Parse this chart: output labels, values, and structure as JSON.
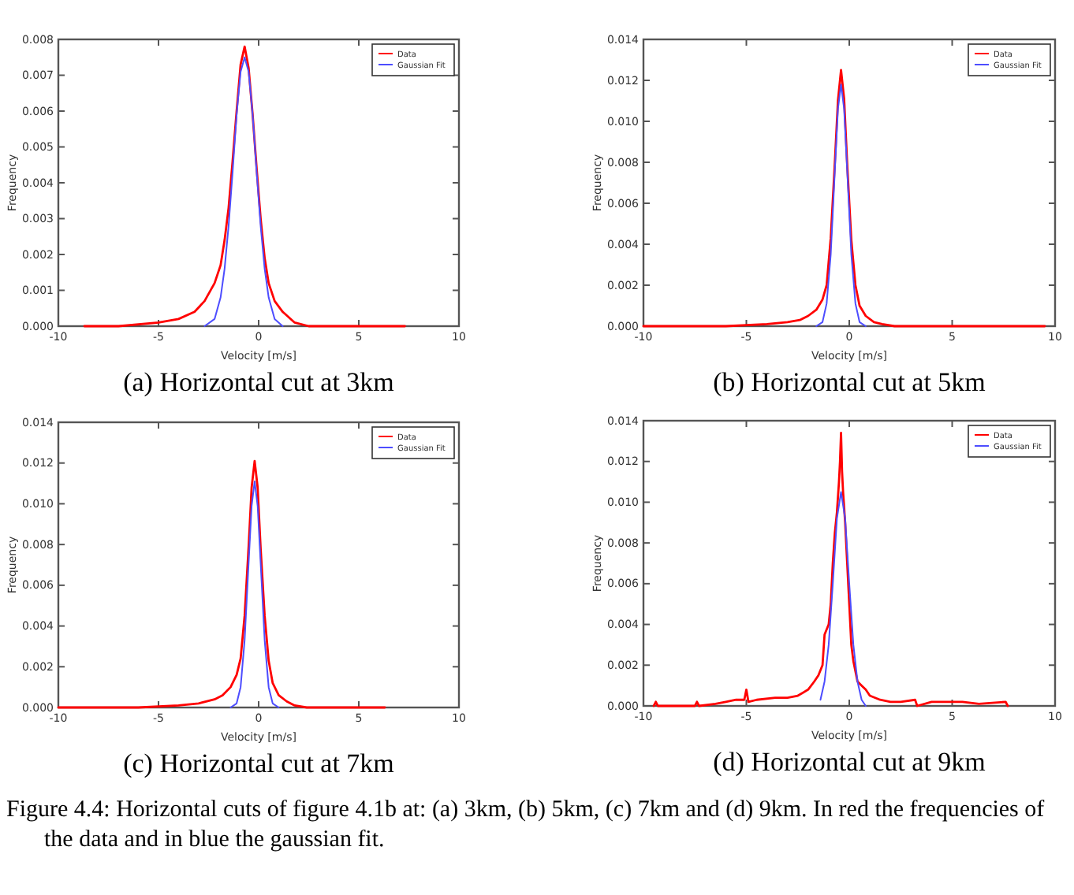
{
  "chart_data": [
    {
      "type": "line",
      "title": "(a) Horizontal cut at 3km",
      "xlabel": "Velocity [m/s]",
      "ylabel": "Frequency",
      "xlim": [
        -10,
        10
      ],
      "xticks": [
        -10,
        -5,
        0,
        5,
        10
      ],
      "ylim": [
        0,
        0.008
      ],
      "yticks": [
        {
          "value": 0,
          "label": "0.000"
        },
        {
          "value": 0.001,
          "label": "0.001"
        },
        {
          "value": 0.002,
          "label": "0.002"
        },
        {
          "value": 0.003,
          "label": "0.003"
        },
        {
          "value": 0.004,
          "label": "0.004"
        },
        {
          "value": 0.005,
          "label": "0.005"
        },
        {
          "value": 0.006,
          "label": "0.006"
        },
        {
          "value": 0.007,
          "label": "0.007"
        },
        {
          "value": 0.008,
          "label": "0.008"
        }
      ],
      "legend": "top right",
      "grid": false,
      "x": [
        -8.7,
        -7,
        -5,
        -4,
        -3.2,
        -2.7,
        -2.2,
        -1.9,
        -1.7,
        -1.5,
        -1.3,
        -1.1,
        -0.9,
        -0.7,
        -0.5,
        -0.3,
        -0.1,
        0.1,
        0.3,
        0.5,
        0.8,
        1.2,
        1.8,
        2.5,
        4,
        6,
        7.3
      ],
      "series": [
        {
          "name": "Data",
          "color": "#ff0000",
          "values": [
            0,
            0,
            0.0001,
            0.0002,
            0.0004,
            0.0007,
            0.0012,
            0.0017,
            0.0024,
            0.0033,
            0.0046,
            0.006,
            0.0073,
            0.0078,
            0.0072,
            0.0059,
            0.0044,
            0.003,
            0.0019,
            0.0012,
            0.0007,
            0.0004,
            0.0001,
            0,
            0,
            0,
            0
          ]
        },
        {
          "name": "Gaussian Fit",
          "color": "#4d4dff",
          "x": [
            -2.7,
            -2.2,
            -1.9,
            -1.7,
            -1.5,
            -1.3,
            -1.1,
            -0.9,
            -0.7,
            -0.5,
            -0.3,
            -0.1,
            0.1,
            0.3,
            0.5,
            0.8,
            1.2
          ],
          "values": [
            0,
            0.0002,
            0.0008,
            0.0016,
            0.0028,
            0.0043,
            0.0059,
            0.0071,
            0.0075,
            0.0071,
            0.0059,
            0.0043,
            0.0028,
            0.0016,
            0.0008,
            0.0002,
            0
          ]
        }
      ]
    },
    {
      "type": "line",
      "title": "(b) Horizontal cut at 5km",
      "xlabel": "Velocity [m/s]",
      "ylabel": "Frequency",
      "xlim": [
        -10,
        10
      ],
      "xticks": [
        -10,
        -5,
        0,
        5,
        10
      ],
      "ylim": [
        0,
        0.014
      ],
      "yticks": [
        {
          "value": 0,
          "label": "0.000"
        },
        {
          "value": 0.002,
          "label": "0.002"
        },
        {
          "value": 0.004,
          "label": "0.004"
        },
        {
          "value": 0.006,
          "label": "0.006"
        },
        {
          "value": 0.008,
          "label": "0.008"
        },
        {
          "value": 0.01,
          "label": "0.010"
        },
        {
          "value": 0.012,
          "label": "0.012"
        },
        {
          "value": 0.014,
          "label": "0.014"
        }
      ],
      "legend": "top right",
      "grid": false,
      "x": [
        -10,
        -6,
        -4,
        -3,
        -2.4,
        -2,
        -1.6,
        -1.3,
        -1.1,
        -0.9,
        -0.7,
        -0.55,
        -0.4,
        -0.25,
        -0.1,
        0.1,
        0.3,
        0.5,
        0.8,
        1.2,
        1.6,
        2.2,
        3,
        5,
        9.5
      ],
      "series": [
        {
          "name": "Data",
          "color": "#ff0000",
          "values": [
            0,
            0,
            0.0001,
            0.0002,
            0.0003,
            0.0005,
            0.0008,
            0.0013,
            0.002,
            0.0043,
            0.008,
            0.011,
            0.0125,
            0.0111,
            0.0079,
            0.0042,
            0.002,
            0.001,
            0.0005,
            0.0002,
            0.0001,
            0,
            0,
            0,
            0
          ]
        },
        {
          "name": "Gaussian Fit",
          "color": "#4d4dff",
          "x": [
            -1.6,
            -1.3,
            -1.1,
            -0.9,
            -0.7,
            -0.55,
            -0.4,
            -0.25,
            -0.1,
            0.1,
            0.3,
            0.5,
            0.8
          ],
          "values": [
            0,
            0.0002,
            0.0011,
            0.0035,
            0.0076,
            0.0106,
            0.0118,
            0.0106,
            0.0076,
            0.0035,
            0.0011,
            0.0002,
            0
          ]
        }
      ]
    },
    {
      "type": "line",
      "title": "(c) Horizontal cut at 7km",
      "xlabel": "Velocity [m/s]",
      "ylabel": "Frequency",
      "xlim": [
        -10,
        10
      ],
      "xticks": [
        -10,
        -5,
        0,
        5,
        10
      ],
      "ylim": [
        0,
        0.014
      ],
      "yticks": [
        {
          "value": 0,
          "label": "0.000"
        },
        {
          "value": 0.002,
          "label": "0.002"
        },
        {
          "value": 0.004,
          "label": "0.004"
        },
        {
          "value": 0.006,
          "label": "0.006"
        },
        {
          "value": 0.008,
          "label": "0.008"
        },
        {
          "value": 0.01,
          "label": "0.010"
        },
        {
          "value": 0.012,
          "label": "0.012"
        },
        {
          "value": 0.014,
          "label": "0.014"
        }
      ],
      "legend": "top right",
      "grid": false,
      "x": [
        -10,
        -6,
        -4,
        -3,
        -2.2,
        -1.8,
        -1.4,
        -1.1,
        -0.9,
        -0.7,
        -0.5,
        -0.35,
        -0.2,
        -0.05,
        0.1,
        0.3,
        0.5,
        0.7,
        1,
        1.4,
        1.8,
        2.4,
        3,
        5,
        6.3
      ],
      "series": [
        {
          "name": "Data",
          "color": "#ff0000",
          "values": [
            0,
            0,
            0.0001,
            0.0002,
            0.0004,
            0.0006,
            0.001,
            0.0016,
            0.0024,
            0.0045,
            0.0079,
            0.0108,
            0.0121,
            0.0108,
            0.0078,
            0.0045,
            0.0023,
            0.0012,
            0.0006,
            0.0003,
            0.0001,
            0,
            0,
            0,
            0
          ]
        },
        {
          "name": "Gaussian Fit",
          "color": "#4d4dff",
          "x": [
            -1.4,
            -1.1,
            -0.9,
            -0.7,
            -0.5,
            -0.35,
            -0.2,
            -0.05,
            0.1,
            0.3,
            0.5,
            0.7,
            1
          ],
          "values": [
            0,
            0.0002,
            0.001,
            0.0033,
            0.0071,
            0.0099,
            0.0111,
            0.0099,
            0.0071,
            0.0033,
            0.001,
            0.0002,
            0
          ]
        }
      ]
    },
    {
      "type": "line",
      "title": "(d) Horizontal cut at 9km",
      "xlabel": "Velocity [m/s]",
      "ylabel": "Frequency",
      "xlim": [
        -10,
        10
      ],
      "xticks": [
        -10,
        -5,
        0,
        5,
        10
      ],
      "ylim": [
        0,
        0.014
      ],
      "yticks": [
        {
          "value": 0,
          "label": "0.000"
        },
        {
          "value": 0.002,
          "label": "0.002"
        },
        {
          "value": 0.004,
          "label": "0.004"
        },
        {
          "value": 0.006,
          "label": "0.006"
        },
        {
          "value": 0.008,
          "label": "0.008"
        },
        {
          "value": 0.01,
          "label": "0.010"
        },
        {
          "value": 0.012,
          "label": "0.012"
        },
        {
          "value": 0.014,
          "label": "0.014"
        }
      ],
      "legend": "top right",
      "grid": false,
      "annotations": [
        "Figure 4.4: Horizontal cuts of figure 4.1b at: (a) 3km, (b) 5km, (c) 7km and (d) 9km. In red the frequencies of the data and in blue the gaussian fit."
      ],
      "series": [
        {
          "name": "Data",
          "color": "#ff0000",
          "x": [
            -9.5,
            -9.4,
            -9.3,
            -7.5,
            -7.4,
            -7.3,
            -6.5,
            -6,
            -5.5,
            -5.1,
            -5,
            -4.9,
            -4.5,
            -3.6,
            -3,
            -2.5,
            -2,
            -1.7,
            -1.5,
            -1.3,
            -1.2,
            -1,
            -0.9,
            -0.8,
            -0.7,
            -0.6,
            -0.5,
            -0.45,
            -0.4,
            -0.35,
            -0.3,
            -0.2,
            -0.1,
            0,
            0.1,
            0.2,
            0.4,
            0.6,
            0.8,
            1,
            1.5,
            2,
            2.5,
            3.2,
            3.3,
            4,
            4.5,
            5.5,
            6.3,
            7.6,
            7.7
          ],
          "values": [
            0,
            0.0002,
            0,
            0,
            0.0002,
            0,
            0.0001,
            0.0002,
            0.0003,
            0.0003,
            0.0008,
            0.0002,
            0.0003,
            0.0004,
            0.0004,
            0.0005,
            0.0008,
            0.0012,
            0.0015,
            0.002,
            0.0035,
            0.004,
            0.005,
            0.007,
            0.0085,
            0.0095,
            0.011,
            0.012,
            0.0134,
            0.0115,
            0.0105,
            0.009,
            0.007,
            0.005,
            0.003,
            0.0022,
            0.0012,
            0.001,
            0.0008,
            0.0005,
            0.0003,
            0.0002,
            0.0002,
            0.0003,
            0,
            0.0002,
            0.0002,
            0.0002,
            0.0001,
            0.0002,
            0
          ]
        },
        {
          "name": "Gaussian Fit",
          "color": "#4d4dff",
          "x": [
            -1.4,
            -1.2,
            -1,
            -0.8,
            -0.6,
            -0.4,
            -0.2,
            0,
            0.2,
            0.4,
            0.6,
            0.8
          ],
          "values": [
            0.0003,
            0.0012,
            0.003,
            0.006,
            0.0092,
            0.0105,
            0.0092,
            0.006,
            0.003,
            0.0012,
            0.0003,
            0
          ]
        }
      ]
    }
  ]
}
